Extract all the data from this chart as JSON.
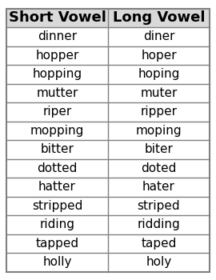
{
  "headers": [
    "Short Vowel",
    "Long Vowel"
  ],
  "rows": [
    [
      "dinner",
      "diner"
    ],
    [
      "hopper",
      "hoper"
    ],
    [
      "hopping",
      "hoping"
    ],
    [
      "mutter",
      "muter"
    ],
    [
      "riper",
      "ripper"
    ],
    [
      "mopping",
      "moping"
    ],
    [
      "bitter",
      "biter"
    ],
    [
      "dotted",
      "doted"
    ],
    [
      "hatter",
      "hater"
    ],
    [
      "stripped",
      "striped"
    ],
    [
      "riding",
      "ridding"
    ],
    [
      "tapped",
      "taped"
    ],
    [
      "holly",
      "holy"
    ]
  ],
  "header_fontsize": 13,
  "row_fontsize": 11,
  "background_color": "#ffffff",
  "header_bg": "#d9d9d9",
  "border_color": "#808080",
  "text_color": "#000000",
  "fig_width": 2.7,
  "fig_height": 3.5
}
